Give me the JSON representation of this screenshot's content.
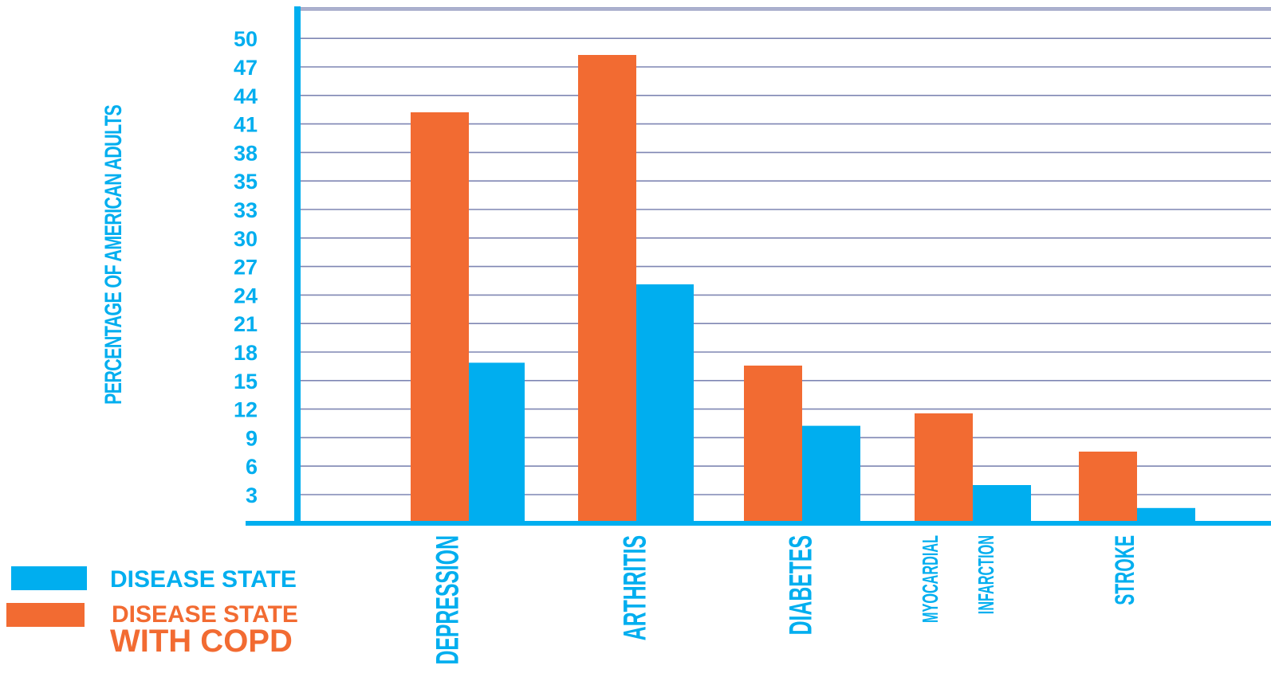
{
  "chart_data": {
    "type": "bar",
    "title": "",
    "xlabel": "",
    "ylabel": "PERCENTAGE OF AMERICAN ADULTS",
    "ylim": [
      0,
      54
    ],
    "yticks": [
      3,
      6,
      9,
      12,
      15,
      18,
      21,
      24,
      27,
      30,
      33,
      35,
      38,
      41,
      44,
      47,
      50
    ],
    "categories": [
      {
        "id": "depression",
        "label_lines": [
          "DEPRESSION"
        ]
      },
      {
        "id": "arthritis",
        "label_lines": [
          "ARTHRITIS"
        ]
      },
      {
        "id": "diabetes",
        "label_lines": [
          "DIABETES"
        ]
      },
      {
        "id": "myocardial-infarction",
        "label_lines": [
          "MYOCARDIAL",
          "INFARCTION"
        ]
      },
      {
        "id": "stroke",
        "label_lines": [
          "STROKE"
        ]
      }
    ],
    "series": [
      {
        "name": "DISEASE STATE WITH COPD",
        "legend_lines": [
          "DISEASE STATE",
          "WITH COPD"
        ],
        "color": "#F26B32",
        "values": [
          43,
          49,
          16.5,
          11.5,
          7.5
        ]
      },
      {
        "name": "DISEASE STATE",
        "legend_lines": [
          "DISEASE STATE"
        ],
        "color": "#00AEEF",
        "values": [
          16.8,
          25,
          10.2,
          4,
          1.6
        ]
      }
    ],
    "grid": true,
    "legend_position": "bottom-left",
    "axis_color": "#00AEEF",
    "grid_color": "#7F86B3"
  }
}
